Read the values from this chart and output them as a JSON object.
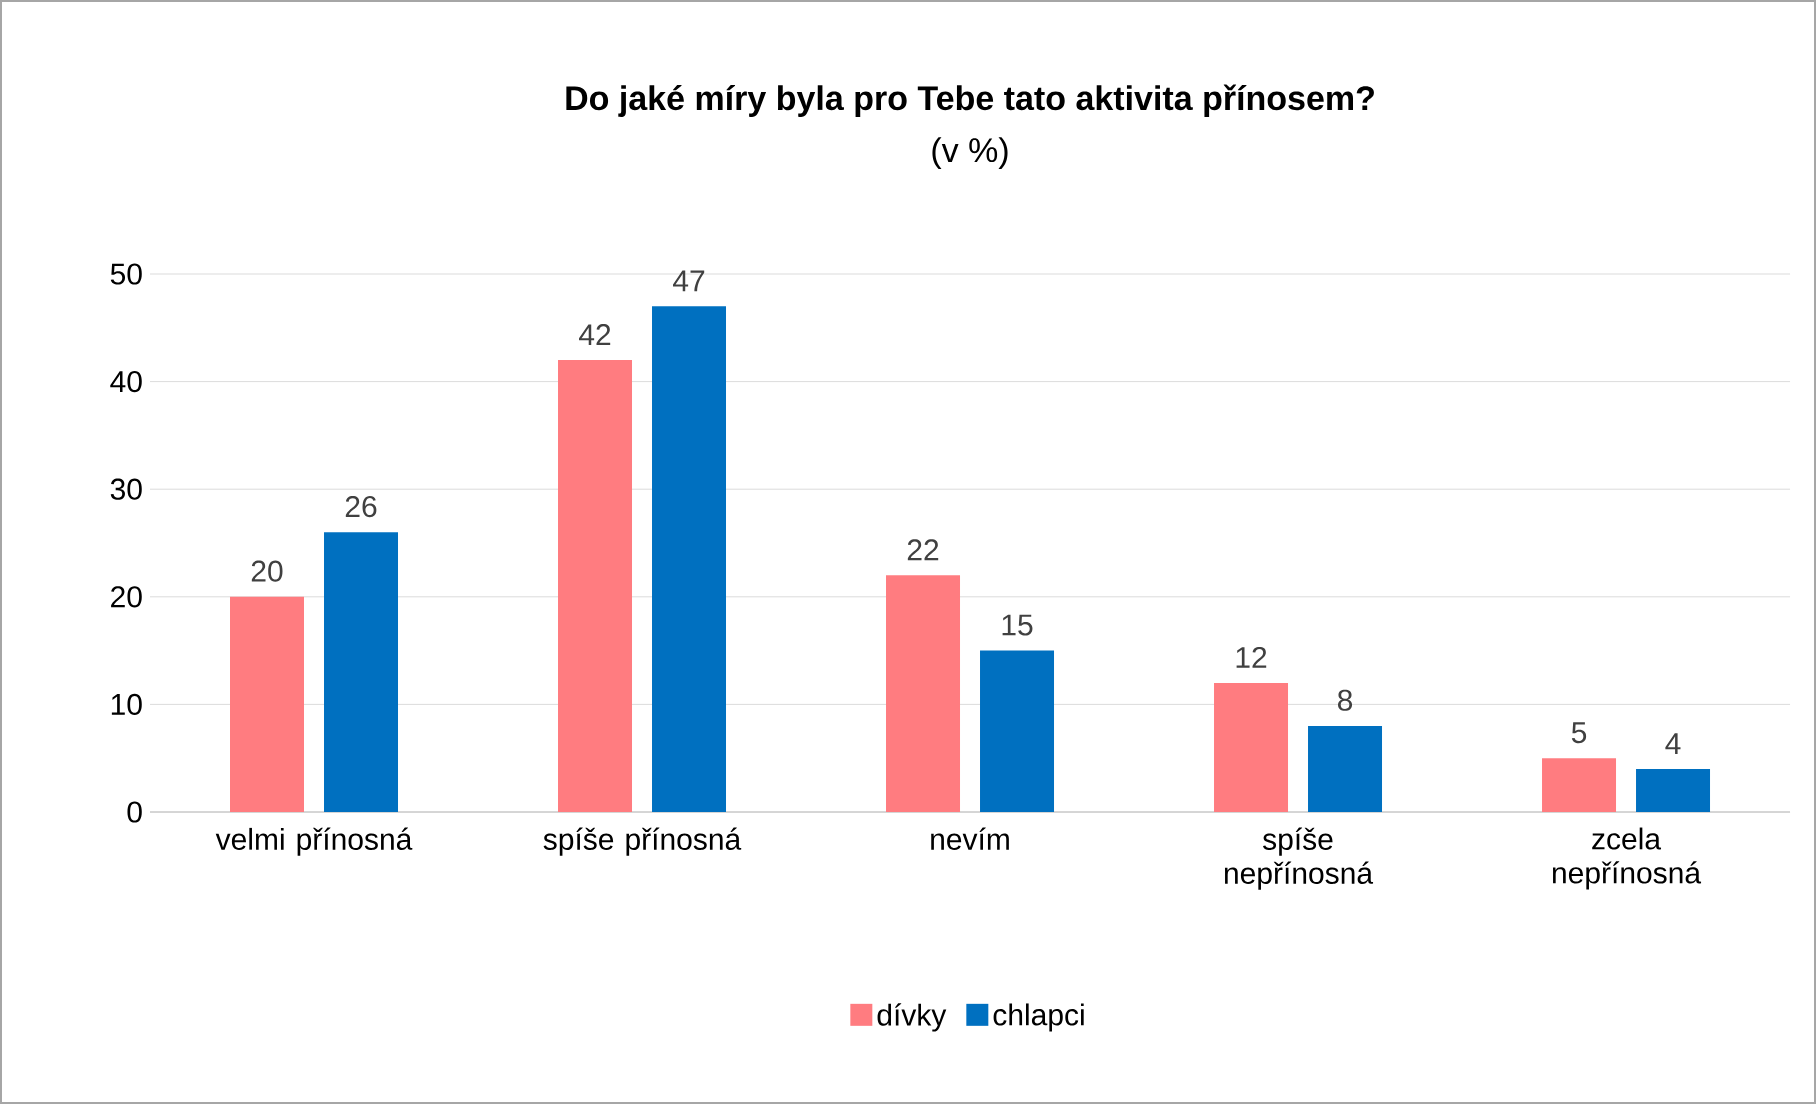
{
  "chart_data": {
    "type": "bar",
    "title": "Do jaké míry byla pro Tebe tato aktivita přínosem?",
    "subtitle": "(v %)",
    "categories": [
      "velmi přínosná",
      "spíše přínosná",
      "nevím",
      "spíše nepřínosná",
      "zcela nepřínosná"
    ],
    "series": [
      {
        "name": "dívky",
        "color": "#ff7c80",
        "values": [
          20,
          42,
          22,
          12,
          5
        ]
      },
      {
        "name": "chlapci",
        "color": "#0070c0",
        "values": [
          26,
          47,
          15,
          8,
          4
        ]
      }
    ],
    "ylim": [
      0,
      50
    ],
    "yticks": [
      0,
      10,
      20,
      30,
      40,
      50
    ],
    "grid": "y",
    "legend": "bottom",
    "data_labels": true
  }
}
